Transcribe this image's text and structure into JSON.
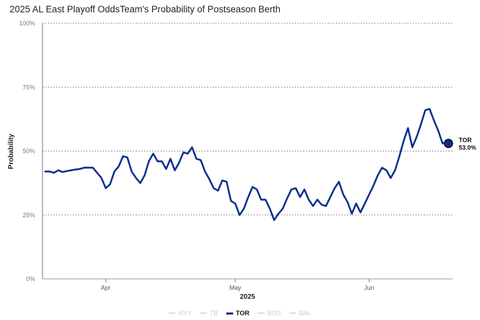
{
  "chart_data": {
    "type": "line",
    "title": "2025 AL East Playoff Odds",
    "subtitle": "Team's Probability of Postseason Berth",
    "xlabel": "2025",
    "ylabel": "Probability",
    "x_ticks": [
      "Apr",
      "May",
      "Jun"
    ],
    "y_ticks": [
      "0%",
      "25%",
      "50%",
      "75%",
      "100%"
    ],
    "ylim": [
      0,
      100
    ],
    "grid": "horizontal dotted",
    "legend_position": "bottom",
    "legend": [
      {
        "name": "NYY",
        "active": false
      },
      {
        "name": "TB",
        "active": false
      },
      {
        "name": "TOR",
        "active": true
      },
      {
        "name": "BOS",
        "active": false
      },
      {
        "name": "BAL",
        "active": false
      }
    ],
    "series": [
      {
        "name": "TOR",
        "color": "#0b2f8e",
        "end_label": "TOR",
        "end_value_label": "53.0%",
        "x_start": "2025-03-18",
        "values": [
          42.0,
          42.0,
          41.5,
          42.5,
          41.8,
          42.2,
          42.5,
          42.8,
          43.0,
          43.5,
          43.5,
          43.5,
          41.5,
          39.5,
          35.5,
          37.0,
          42.0,
          44.0,
          48.0,
          47.5,
          42.0,
          39.5,
          37.5,
          40.5,
          46.0,
          49.0,
          46.0,
          46.0,
          43.0,
          47.0,
          42.5,
          45.5,
          49.5,
          49.0,
          51.5,
          47.0,
          46.5,
          42.0,
          39.0,
          35.5,
          34.5,
          38.5,
          38.0,
          30.5,
          29.5,
          25.0,
          27.5,
          32.0,
          36.0,
          35.0,
          31.0,
          31.0,
          27.5,
          23.0,
          25.5,
          27.5,
          31.5,
          35.0,
          35.5,
          32.0,
          35.0,
          31.0,
          28.5,
          31.0,
          29.0,
          28.5,
          32.0,
          35.5,
          38.0,
          33.0,
          30.0,
          25.5,
          29.5,
          26.0,
          29.5,
          33.0,
          36.5,
          40.5,
          43.5,
          42.5,
          39.5,
          42.5,
          48.0,
          54.0,
          59.0,
          51.5,
          55.5,
          60.5,
          66.0,
          66.5,
          62.0,
          58.0,
          53.0,
          53.5,
          53.0
        ]
      }
    ]
  }
}
